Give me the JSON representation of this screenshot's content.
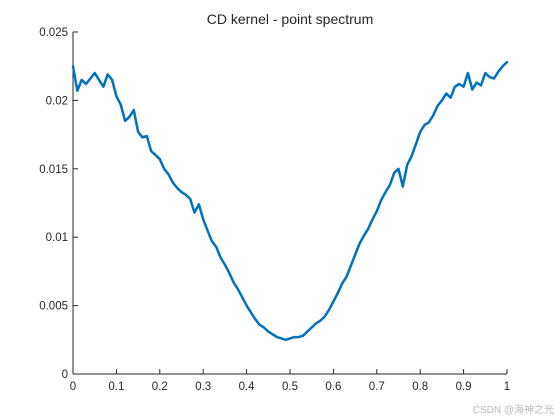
{
  "watermark": "CSDN @海神之光",
  "chart_data": {
    "type": "line",
    "title": "CD kernel - point spectrum",
    "xlabel": "",
    "ylabel": "",
    "xlim": [
      0,
      1
    ],
    "ylim": [
      0,
      0.025
    ],
    "xticks": [
      0,
      0.1,
      0.2,
      0.3,
      0.4,
      0.5,
      0.6,
      0.7,
      0.8,
      0.9,
      1
    ],
    "xtick_labels": [
      "0",
      "0.1",
      "0.2",
      "0.3",
      "0.4",
      "0.5",
      "0.6",
      "0.7",
      "0.8",
      "0.9",
      "1"
    ],
    "yticks": [
      0,
      0.005,
      0.01,
      0.015,
      0.02,
      0.025
    ],
    "ytick_labels": [
      "0",
      "0.005",
      "0.01",
      "0.015",
      "0.02",
      "0.025"
    ],
    "grid": false,
    "legend": "none",
    "line_color": "#0072bd",
    "series": [
      {
        "x": [
          0,
          0.01,
          0.02,
          0.03,
          0.04,
          0.05,
          0.06,
          0.07,
          0.08,
          0.09,
          0.1,
          0.11,
          0.12,
          0.13,
          0.14,
          0.15,
          0.16,
          0.17,
          0.18,
          0.19,
          0.2,
          0.21,
          0.22,
          0.23,
          0.24,
          0.25,
          0.26,
          0.27,
          0.28,
          0.29,
          0.3,
          0.31,
          0.32,
          0.33,
          0.34,
          0.35,
          0.36,
          0.37,
          0.38,
          0.39,
          0.4,
          0.41,
          0.42,
          0.43,
          0.44,
          0.45,
          0.46,
          0.47,
          0.48,
          0.49,
          0.5,
          0.51,
          0.52,
          0.53,
          0.54,
          0.55,
          0.56,
          0.57,
          0.58,
          0.59,
          0.6,
          0.61,
          0.62,
          0.63,
          0.64,
          0.65,
          0.66,
          0.67,
          0.68,
          0.69,
          0.7,
          0.71,
          0.72,
          0.73,
          0.74,
          0.75,
          0.76,
          0.77,
          0.78,
          0.79,
          0.8,
          0.81,
          0.82,
          0.83,
          0.84,
          0.85,
          0.86,
          0.87,
          0.88,
          0.89,
          0.9,
          0.91,
          0.92,
          0.93,
          0.94,
          0.95,
          0.96,
          0.97,
          0.98,
          0.99,
          1
        ],
        "y": [
          0.0225,
          0.0207,
          0.0215,
          0.0212,
          0.0216,
          0.022,
          0.0215,
          0.021,
          0.0219,
          0.0215,
          0.0203,
          0.0197,
          0.0185,
          0.0188,
          0.0193,
          0.0177,
          0.0173,
          0.0174,
          0.0163,
          0.016,
          0.0157,
          0.015,
          0.0146,
          0.014,
          0.0136,
          0.0133,
          0.0131,
          0.0128,
          0.0118,
          0.0124,
          0.0113,
          0.0105,
          0.0097,
          0.0093,
          0.0085,
          0.008,
          0.0074,
          0.0067,
          0.0062,
          0.0056,
          0.005,
          0.0045,
          0.004,
          0.0036,
          0.0034,
          0.0031,
          0.0029,
          0.0027,
          0.0026,
          0.0025,
          0.0026,
          0.0027,
          0.0027,
          0.0028,
          0.0031,
          0.0034,
          0.0037,
          0.0039,
          0.0042,
          0.0047,
          0.0053,
          0.0059,
          0.0066,
          0.0071,
          0.0079,
          0.0087,
          0.0095,
          0.0101,
          0.0106,
          0.0113,
          0.0119,
          0.0127,
          0.0133,
          0.0138,
          0.0147,
          0.015,
          0.0137,
          0.0153,
          0.0159,
          0.0168,
          0.0177,
          0.0182,
          0.0184,
          0.0189,
          0.0196,
          0.02,
          0.0205,
          0.0202,
          0.021,
          0.0212,
          0.021,
          0.022,
          0.0208,
          0.0213,
          0.0211,
          0.022,
          0.0217,
          0.0216,
          0.0221,
          0.0225,
          0.0228
        ]
      }
    ]
  }
}
